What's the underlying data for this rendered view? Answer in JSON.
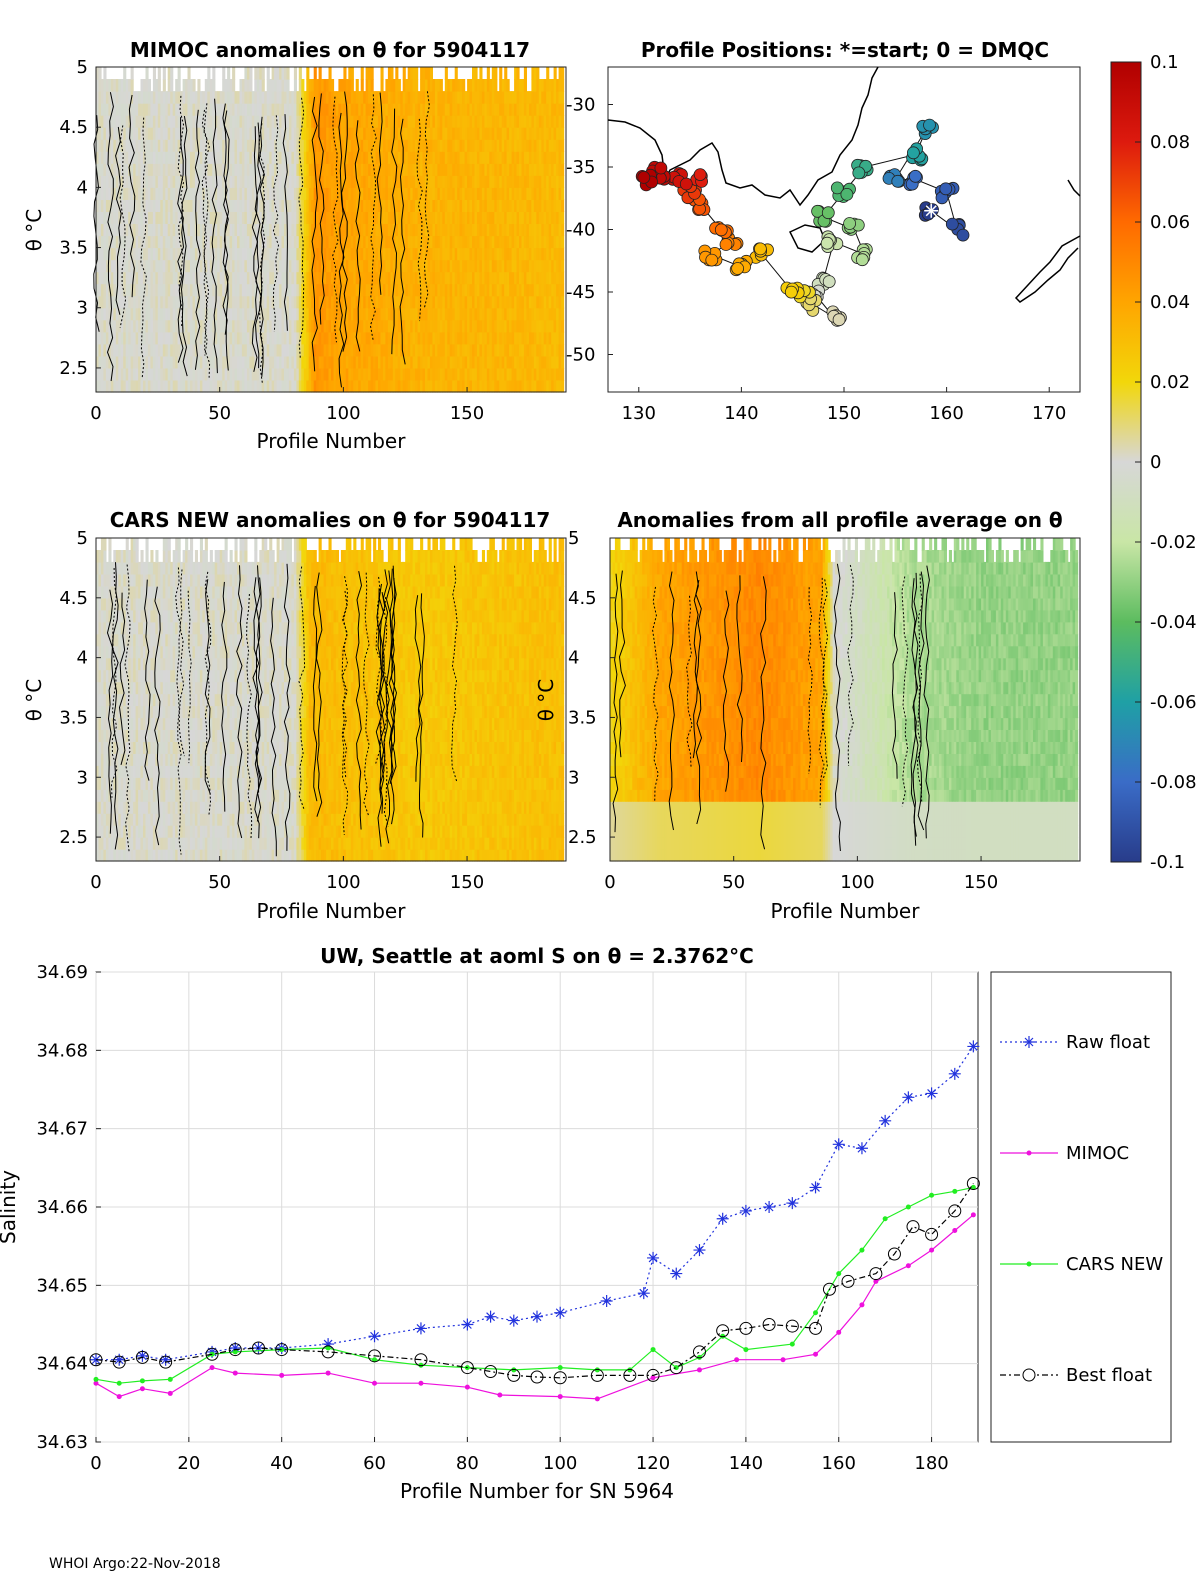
{
  "footer": "WHOI Argo:22-Nov-2018",
  "colors": {
    "raw": "#2233dd",
    "mimoc": "#ee11dd",
    "cars": "#22ee22",
    "best": "#000000"
  },
  "colorbar": {
    "range": [
      -0.1,
      0.1
    ],
    "ticks": [
      "0.1",
      "0.08",
      "0.06",
      "0.04",
      "0.02",
      "0",
      "-0.02",
      "-0.04",
      "-0.06",
      "-0.08",
      "-0.1"
    ]
  },
  "chart_data": [
    {
      "type": "heatmap",
      "title": "MIMOC anomalies on θ  for 5904117",
      "xlabel": "Profile Number",
      "ylabel": "θ °C",
      "xlim": [
        0,
        190
      ],
      "ylim": [
        2.3,
        5
      ],
      "xticks": [
        "0",
        "50",
        "100",
        "150"
      ],
      "yticks": [
        "2.5",
        "3",
        "3.5",
        "4",
        "4.5",
        "5"
      ],
      "profile_anomaly": {
        "x": [
          0,
          40,
          80,
          88,
          100,
          130,
          190
        ],
        "v": [
          0.0,
          0.0,
          0.0,
          0.045,
          0.04,
          0.035,
          0.032
        ]
      }
    },
    {
      "type": "scatter",
      "title": "Profile Positions: *=start; 0 = DMQC",
      "xlim": [
        127,
        173
      ],
      "ylim": [
        -53,
        -27
      ],
      "xticks": [
        "130",
        "140",
        "150",
        "160",
        "170"
      ],
      "yticks": [
        "-30",
        "-35",
        "-40",
        "-45",
        "-50"
      ],
      "track": {
        "lon": [
          158.5,
          161,
          160,
          157,
          155,
          158,
          157,
          152,
          150,
          148,
          151,
          152,
          149,
          148,
          147,
          149,
          147,
          146,
          145,
          142,
          140,
          137,
          139,
          138,
          136,
          135,
          136,
          134,
          132,
          131
        ],
        "lat": [
          -38.5,
          -40,
          -37,
          -36,
          -36,
          -32,
          -34,
          -35,
          -37,
          -39,
          -40,
          -42,
          -41,
          -44,
          -45,
          -47,
          -46,
          -45,
          -45,
          -42,
          -43,
          -42,
          -41,
          -40,
          -38,
          -37,
          -36,
          -36,
          -35.5,
          -36
        ],
        "start": [
          158.5,
          -38.5
        ]
      }
    },
    {
      "type": "heatmap",
      "title": "CARS NEW anomalies on θ for 5904117",
      "xlabel": "Profile Number",
      "ylabel": "θ °C",
      "xlim": [
        0,
        190
      ],
      "ylim": [
        2.3,
        5
      ],
      "xticks": [
        "0",
        "50",
        "100",
        "150"
      ],
      "yticks": [
        "2.5",
        "3",
        "3.5",
        "4",
        "4.5",
        "5"
      ],
      "profile_anomaly": {
        "x": [
          0,
          40,
          80,
          86,
          100,
          130,
          190
        ],
        "v": [
          0.0,
          0.0,
          0.0,
          0.032,
          0.03,
          0.026,
          0.03
        ]
      }
    },
    {
      "type": "heatmap",
      "title": "Anomalies from all profile average on θ",
      "xlabel": "Profile Number",
      "ylabel": "θ °C",
      "xlim": [
        0,
        190
      ],
      "ylim": [
        2.3,
        5
      ],
      "xticks": [
        "0",
        "50",
        "100",
        "150"
      ],
      "yticks": [
        "2.5",
        "3",
        "3.5",
        "4",
        "4.5",
        "5"
      ],
      "profile_anomaly": {
        "x": [
          0,
          20,
          60,
          85,
          90,
          120,
          150,
          190
        ],
        "v": [
          0.02,
          0.04,
          0.05,
          0.04,
          0.0,
          -0.025,
          -0.03,
          -0.03
        ]
      }
    },
    {
      "type": "line",
      "title": "UW, Seattle at aoml S on θ = 2.3762°C",
      "xlabel": "Profile Number for SN 5964",
      "ylabel": "Salinity",
      "xlim": [
        0,
        190
      ],
      "ylim": [
        34.63,
        34.69
      ],
      "xticks": [
        "0",
        "20",
        "40",
        "60",
        "80",
        "100",
        "120",
        "140",
        "160",
        "180"
      ],
      "yticks": [
        "34.63",
        "34.64",
        "34.65",
        "34.66",
        "34.67",
        "34.68",
        "34.69"
      ],
      "series": [
        {
          "name": "Raw float",
          "x": [
            0,
            5,
            10,
            15,
            25,
            30,
            35,
            40,
            50,
            60,
            70,
            80,
            85,
            90,
            95,
            100,
            110,
            118,
            120,
            125,
            130,
            135,
            140,
            145,
            150,
            155,
            160,
            165,
            170,
            175,
            180,
            185,
            189
          ],
          "y": [
            34.6405,
            34.6405,
            34.641,
            34.6405,
            34.6415,
            34.642,
            34.642,
            34.642,
            34.6425,
            34.6435,
            34.6445,
            34.645,
            34.646,
            34.6455,
            34.646,
            34.6465,
            34.648,
            34.649,
            34.6535,
            34.6515,
            34.6545,
            34.6585,
            34.6595,
            34.66,
            34.6605,
            34.6625,
            34.668,
            34.6675,
            34.671,
            34.674,
            34.6745,
            34.677,
            34.6805
          ]
        },
        {
          "name": "MIMOC",
          "x": [
            0,
            5,
            10,
            16,
            25,
            30,
            40,
            50,
            60,
            70,
            80,
            87,
            100,
            108,
            120,
            130,
            138,
            148,
            155,
            160,
            165,
            168,
            175,
            180,
            185,
            189
          ],
          "y": [
            34.6375,
            34.6358,
            34.6368,
            34.6362,
            34.6395,
            34.6388,
            34.6385,
            34.6388,
            34.6375,
            34.6375,
            34.637,
            34.636,
            34.6358,
            34.6355,
            34.6382,
            34.6392,
            34.6405,
            34.6405,
            34.6412,
            34.644,
            34.6475,
            34.6505,
            34.6525,
            34.6545,
            34.657,
            34.659
          ]
        },
        {
          "name": "CARS NEW",
          "x": [
            0,
            5,
            10,
            16,
            25,
            30,
            40,
            50,
            60,
            70,
            80,
            90,
            100,
            108,
            115,
            120,
            125,
            130,
            135,
            140,
            150,
            155,
            160,
            165,
            170,
            175,
            180,
            185,
            189
          ],
          "y": [
            34.638,
            34.6375,
            34.6378,
            34.638,
            34.6412,
            34.6415,
            34.6418,
            34.642,
            34.6405,
            34.6398,
            34.6395,
            34.6392,
            34.6395,
            34.6392,
            34.6392,
            34.6418,
            34.6395,
            34.6408,
            34.6435,
            34.6418,
            34.6425,
            34.6465,
            34.6515,
            34.6545,
            34.6585,
            34.66,
            34.6615,
            34.662,
            34.6625
          ]
        },
        {
          "name": "Best float",
          "x": [
            0,
            5,
            10,
            15,
            25,
            30,
            35,
            40,
            50,
            60,
            70,
            80,
            85,
            90,
            95,
            100,
            108,
            115,
            120,
            125,
            130,
            135,
            140,
            145,
            150,
            155,
            158,
            162,
            168,
            172,
            176,
            180,
            185,
            189
          ],
          "y": [
            34.6405,
            34.6402,
            34.6408,
            34.6402,
            34.6412,
            34.6418,
            34.642,
            34.6418,
            34.6415,
            34.641,
            34.6405,
            34.6395,
            34.639,
            34.6385,
            34.6383,
            34.6382,
            34.6385,
            34.6385,
            34.6385,
            34.6395,
            34.6415,
            34.6442,
            34.6445,
            34.645,
            34.6448,
            34.6445,
            34.6495,
            34.6505,
            34.6515,
            34.654,
            34.6575,
            34.6565,
            34.6595,
            34.663
          ]
        }
      ],
      "legend": [
        "Raw float",
        "MIMOC",
        "CARS NEW",
        "Best float"
      ]
    }
  ]
}
